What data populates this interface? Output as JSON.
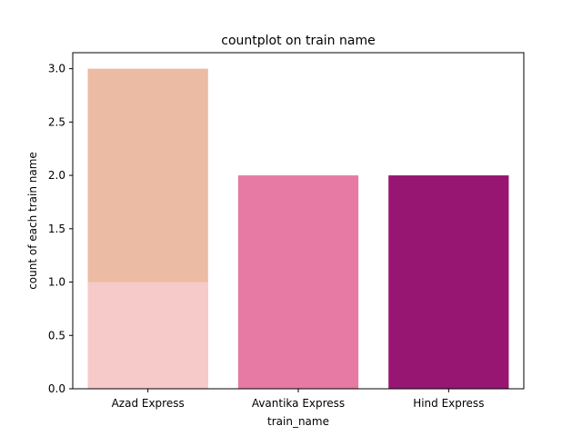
{
  "chart_data": {
    "type": "bar",
    "title": "countplot on train name",
    "xlabel": "train_name",
    "ylabel": "count of each train name",
    "categories": [
      "Azad Express",
      "Avantika Express",
      "Hind Express"
    ],
    "bars": [
      {
        "category": "Azad Express",
        "value": 3,
        "color": "#ebbba4"
      },
      {
        "category": "Azad Express",
        "value": 1,
        "color": "#f5cac8"
      },
      {
        "category": "Avantika Express",
        "value": 2,
        "color": "#e67aa4"
      },
      {
        "category": "Hind Express",
        "value": 2,
        "color": "#971672"
      }
    ],
    "ylim": [
      0,
      3.15
    ],
    "yticks": [
      "0.0",
      "0.5",
      "1.0",
      "1.5",
      "2.0",
      "2.5",
      "3.0"
    ],
    "grid": false
  }
}
